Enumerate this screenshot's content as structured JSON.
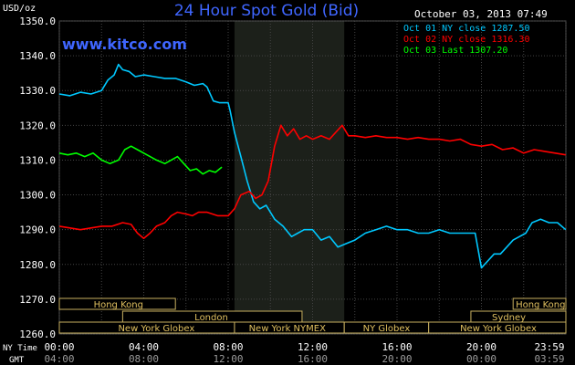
{
  "header": {
    "title": "24 Hour Spot Gold (Bid)",
    "units": "USD/oz",
    "timestamp": "October 03, 2013 07:49",
    "site": "www.kitco.com"
  },
  "legend": [
    {
      "text": "Oct 01 NY close 1287.50",
      "color": "#00c8ff"
    },
    {
      "text": "Oct 02 NY close 1316.30",
      "color": "#ff0000"
    },
    {
      "text": "Oct 03 Last 1307.20",
      "color": "#00ff00"
    }
  ],
  "row_labels": {
    "ny": "NY Time",
    "gmt": "GMT"
  },
  "sessions": {
    "row1": [
      {
        "name": "Hong Kong",
        "start": 0,
        "end": 5.5,
        "label_at": 2.8
      },
      {
        "name": "Hong Kong",
        "start": 21.5,
        "end": 24,
        "label_at": 22.8
      }
    ],
    "row2": [
      {
        "name": "London",
        "start": 3,
        "end": 11.5,
        "label_at": 7.2
      },
      {
        "name": "Sydney",
        "start": 19.5,
        "end": 24,
        "label_at": 21.3
      }
    ],
    "row3": [
      {
        "name": "New York Globex",
        "start": 0,
        "end": 8.3,
        "label_at": 4.6
      },
      {
        "name": "New York NYMEX",
        "start": 8.3,
        "end": 13.5,
        "label_at": 10.8
      },
      {
        "name": "NY Globex",
        "start": 13.5,
        "end": 17.5,
        "label_at": 15.5
      },
      {
        "name": "New York Globex",
        "start": 17.5,
        "end": 24,
        "label_at": 20.8
      }
    ]
  },
  "chart_data": {
    "type": "line",
    "title": "24 Hour Spot Gold (Bid)",
    "ylabel": "USD/oz",
    "xlim": [
      0,
      24
    ],
    "ylim": [
      1260,
      1350
    ],
    "grid": true,
    "legend_position": "top-right",
    "y_ticks": [
      "1260.0",
      "1270.0",
      "1280.0",
      "1290.0",
      "1300.0",
      "1310.0",
      "1320.0",
      "1330.0",
      "1340.0",
      "1350.0"
    ],
    "x_ticks_ny": [
      "00:00",
      "04:00",
      "08:00",
      "12:00",
      "16:00",
      "20:00",
      "23:59"
    ],
    "x_ticks_gmt": [
      "04:00",
      "08:00",
      "12:00",
      "16:00",
      "20:00",
      "00:00",
      "03:59"
    ],
    "highlight_band": [
      8.3,
      13.5
    ],
    "series": [
      {
        "name": "Oct 01 NY close 1287.50",
        "color": "#00c8ff",
        "x": [
          0,
          0.5,
          1,
          1.5,
          2,
          2.3,
          2.6,
          2.8,
          3.0,
          3.3,
          3.6,
          4.0,
          4.5,
          5.0,
          5.5,
          6.0,
          6.4,
          6.8,
          7.0,
          7.3,
          7.6,
          8.0,
          8.1,
          8.3,
          8.6,
          8.9,
          9.2,
          9.5,
          9.8,
          10.2,
          10.6,
          11.0,
          11.3,
          11.6,
          12.0,
          12.4,
          12.8,
          13.2,
          13.6,
          14.0,
          14.5,
          15.0,
          15.5,
          16.0,
          16.5,
          17.0,
          17.5,
          18.0,
          18.5,
          19.0,
          19.4,
          19.7,
          20.0,
          20.3,
          20.6,
          20.9,
          21.2,
          21.5,
          21.8,
          22.1,
          22.4,
          22.8,
          23.2,
          23.6,
          23.99
        ],
        "y": [
          1329,
          1328.5,
          1329.5,
          1329,
          1330,
          1333,
          1334.5,
          1337.5,
          1336,
          1335.5,
          1334,
          1334.5,
          1334,
          1333.5,
          1333.5,
          1332.5,
          1331.5,
          1332,
          1331,
          1327,
          1326.5,
          1326.5,
          1324,
          1318,
          1311,
          1304,
          1298,
          1296,
          1297,
          1293,
          1291,
          1288,
          1289,
          1290,
          1290,
          1287,
          1288,
          1285,
          1286,
          1287,
          1289,
          1290,
          1291,
          1290,
          1290,
          1289,
          1289,
          1290,
          1289,
          1289,
          1289,
          1289,
          1279,
          1281,
          1283,
          1283,
          1285,
          1287,
          1288,
          1289,
          1292,
          1293,
          1292,
          1292,
          1290
        ]
      },
      {
        "name": "Oct 02 NY close 1316.30",
        "color": "#ff0000",
        "x": [
          0,
          0.5,
          1,
          1.5,
          2,
          2.5,
          3.0,
          3.4,
          3.7,
          4.0,
          4.3,
          4.6,
          5.0,
          5.3,
          5.6,
          6.0,
          6.3,
          6.6,
          7.0,
          7.5,
          8.0,
          8.3,
          8.6,
          9.0,
          9.3,
          9.6,
          9.9,
          10.2,
          10.5,
          10.8,
          11.1,
          11.4,
          11.7,
          12.0,
          12.4,
          12.8,
          13.1,
          13.4,
          13.7,
          14.0,
          14.5,
          15.0,
          15.5,
          16.0,
          16.5,
          17.0,
          17.5,
          18.0,
          18.5,
          19.0,
          19.5,
          20.0,
          20.5,
          21.0,
          21.5,
          22.0,
          22.5,
          23.0,
          23.5,
          23.99
        ],
        "y": [
          1291,
          1290.5,
          1290,
          1290.5,
          1291,
          1291,
          1292,
          1291.5,
          1289,
          1287.5,
          1289,
          1291,
          1292,
          1294,
          1295,
          1294.5,
          1294,
          1295,
          1295,
          1294,
          1294,
          1296,
          1300,
          1301,
          1299,
          1300,
          1304,
          1314,
          1320,
          1317,
          1319,
          1316,
          1317,
          1316,
          1317,
          1316,
          1318,
          1320,
          1317,
          1317,
          1316.5,
          1317,
          1316.5,
          1316.5,
          1316,
          1316.5,
          1316,
          1316,
          1315.5,
          1316,
          1314.5,
          1314,
          1314.5,
          1313,
          1313.5,
          1312,
          1313,
          1312.5,
          1312,
          1311.5
        ]
      },
      {
        "name": "Oct 03 Last 1307.20",
        "color": "#00ff00",
        "x": [
          0,
          0.4,
          0.8,
          1.2,
          1.6,
          2.0,
          2.4,
          2.8,
          3.1,
          3.4,
          3.7,
          4.0,
          4.3,
          4.6,
          5.0,
          5.3,
          5.6,
          5.9,
          6.2,
          6.5,
          6.8,
          7.1,
          7.4,
          7.7
        ],
        "y": [
          1312,
          1311.5,
          1312,
          1311,
          1312,
          1310,
          1309,
          1310,
          1313,
          1314,
          1313,
          1312,
          1311,
          1310,
          1309,
          1310,
          1311,
          1309,
          1307,
          1307.5,
          1306,
          1307,
          1306.5,
          1308
        ]
      }
    ]
  }
}
